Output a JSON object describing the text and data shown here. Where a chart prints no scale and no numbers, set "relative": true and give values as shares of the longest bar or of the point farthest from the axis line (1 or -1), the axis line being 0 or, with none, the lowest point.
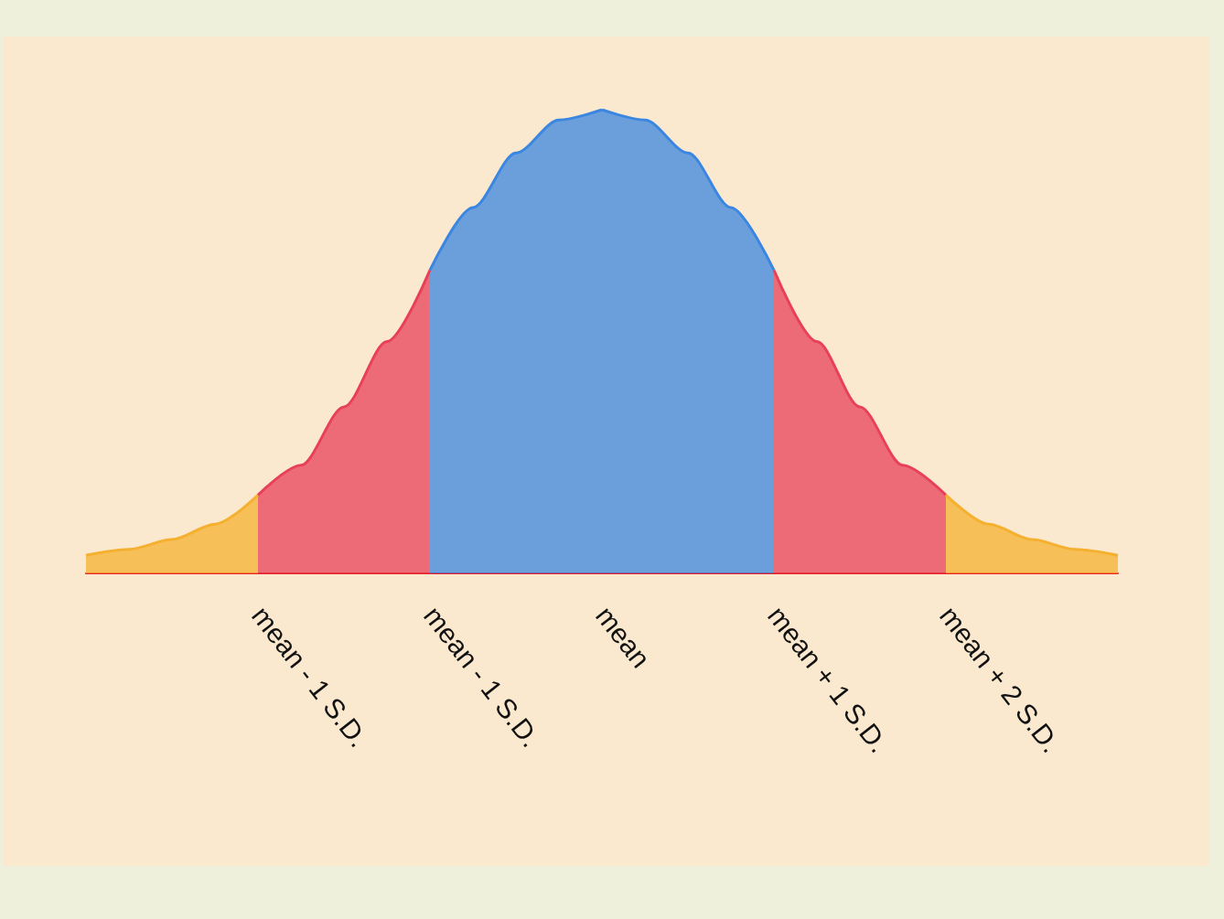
{
  "chart_data": {
    "type": "area",
    "relative": true,
    "grid": false,
    "tick_labels": "x",
    "categories": [
      null,
      null,
      null,
      null,
      "mean - 1 S.D.",
      null,
      null,
      null,
      "mean - 1 S.D.",
      null,
      null,
      null,
      "mean",
      null,
      null,
      null,
      "mean + 1 S.D.",
      null,
      null,
      null,
      "mean + 2 S.D.",
      null,
      null,
      null,
      null
    ],
    "series": [
      {
        "color": "#f5b030",
        "values": [
          0.039,
          0.052,
          0.073,
          0.106,
          0.169,
          null,
          null,
          null,
          null,
          null,
          null,
          null,
          null,
          null,
          null,
          null,
          null,
          null,
          null,
          null,
          null,
          null,
          null,
          null,
          null
        ]
      },
      {
        "color": "#e8405a",
        "values": [
          null,
          null,
          null,
          null,
          0.169,
          0.233,
          0.359,
          0.5,
          0.654,
          null,
          null,
          null,
          null,
          null,
          null,
          null,
          null,
          null,
          null,
          null,
          null,
          null,
          null,
          null,
          null
        ]
      },
      {
        "color": "#3a86e0",
        "values": [
          null,
          null,
          null,
          null,
          null,
          null,
          null,
          null,
          0.654,
          0.789,
          0.907,
          0.978,
          1,
          null,
          null,
          null,
          null,
          null,
          null,
          null,
          null,
          null,
          null,
          null,
          null
        ]
      },
      {
        "color": "#3a86e0",
        "values": [
          null,
          null,
          null,
          null,
          null,
          null,
          null,
          null,
          null,
          null,
          null,
          null,
          1,
          0.978,
          0.907,
          0.789,
          0.654,
          null,
          null,
          null,
          null,
          null,
          null,
          null,
          null
        ]
      },
      {
        "color": "#e8405a",
        "values": [
          null,
          null,
          null,
          null,
          null,
          null,
          null,
          null,
          null,
          null,
          null,
          null,
          null,
          null,
          null,
          null,
          0.654,
          0.5,
          0.359,
          0.233,
          0.169,
          null,
          null,
          null,
          null
        ]
      },
      {
        "color": "#f5b030",
        "values": [
          null,
          null,
          null,
          null,
          null,
          null,
          null,
          null,
          null,
          null,
          null,
          null,
          null,
          null,
          null,
          null,
          null,
          null,
          null,
          null,
          0.169,
          0.106,
          0.073,
          0.052,
          0.039
        ]
      }
    ]
  }
}
